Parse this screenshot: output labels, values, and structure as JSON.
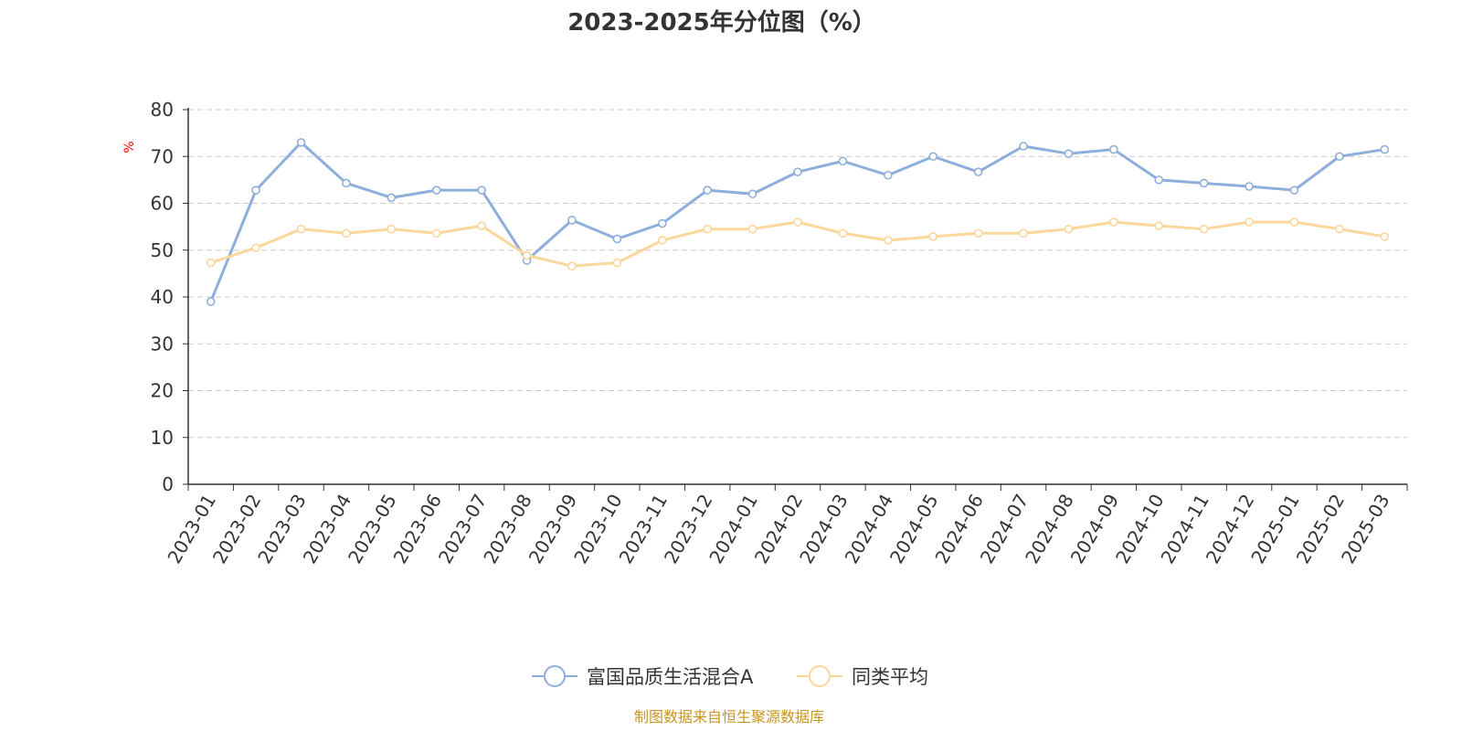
{
  "chart_data": {
    "type": "line",
    "title": "2023-2025年分位图（%）",
    "ylabel": "%",
    "ylim": [
      0,
      80
    ],
    "yticks": [
      "0",
      "10",
      "20",
      "30",
      "40",
      "50",
      "60",
      "70",
      "80"
    ],
    "grid": true,
    "legend_position": "bottom",
    "categories": [
      "2023-01",
      "2023-02",
      "2023-03",
      "2023-04",
      "2023-05",
      "2023-06",
      "2023-07",
      "2023-08",
      "2023-09",
      "2023-10",
      "2023-11",
      "2023-12",
      "2024-01",
      "2024-02",
      "2024-03",
      "2024-04",
      "2024-05",
      "2024-06",
      "2024-07",
      "2024-08",
      "2024-09",
      "2024-10",
      "2024-11",
      "2024-12",
      "2025-01",
      "2025-02",
      "2025-03"
    ],
    "series": [
      {
        "name": "富国品质生活混合A",
        "color": "#8eaedb",
        "values": [
          39,
          62.8,
          73,
          64.3,
          61.2,
          62.8,
          62.8,
          47.8,
          56.4,
          52.4,
          55.7,
          62.8,
          62,
          66.7,
          69,
          66,
          70,
          66.7,
          72.2,
          70.6,
          71.5,
          65,
          64.3,
          63.6,
          62.8,
          70,
          71.5
        ]
      },
      {
        "name": "同类平均",
        "color": "#fad79b",
        "values": [
          47.3,
          50.5,
          54.5,
          53.6,
          54.5,
          53.6,
          55.2,
          48.9,
          46.6,
          47.3,
          52.1,
          54.5,
          54.5,
          56,
          53.6,
          52.1,
          52.9,
          53.6,
          53.6,
          54.5,
          56,
          55.2,
          54.5,
          56,
          56,
          54.5,
          52.9
        ]
      }
    ],
    "source": "制图数据来自恒生聚源数据库"
  }
}
